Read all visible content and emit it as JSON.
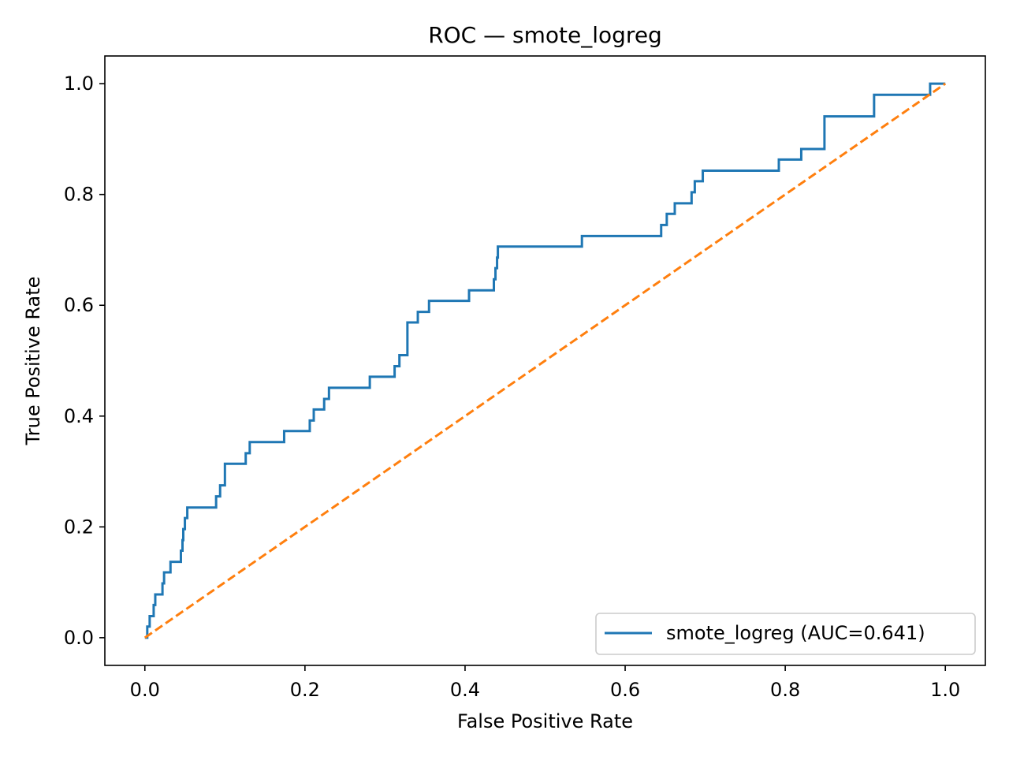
{
  "chart_data": {
    "type": "line",
    "title": "ROC — smote_logreg",
    "xlabel": "False Positive Rate",
    "ylabel": "True Positive Rate",
    "xlim": [
      -0.05,
      1.05
    ],
    "ylim": [
      -0.05,
      1.05
    ],
    "xticks": [
      0.0,
      0.2,
      0.4,
      0.6,
      0.8,
      1.0
    ],
    "xtick_labels": [
      "0.0",
      "0.2",
      "0.4",
      "0.6",
      "0.8",
      "1.0"
    ],
    "yticks": [
      0.0,
      0.2,
      0.4,
      0.6,
      0.8,
      1.0
    ],
    "ytick_labels": [
      "0.0",
      "0.2",
      "0.4",
      "0.6",
      "0.8",
      "1.0"
    ],
    "grid": false,
    "legend_position": "lower-right",
    "series": [
      {
        "name": "smote_logreg (AUC=0.641)",
        "color": "#1f77b4",
        "style": "solid",
        "points": [
          [
            0.0,
            0.0
          ],
          [
            0.003,
            0.0
          ],
          [
            0.003,
            0.02
          ],
          [
            0.006,
            0.02
          ],
          [
            0.006,
            0.039
          ],
          [
            0.011,
            0.039
          ],
          [
            0.011,
            0.059
          ],
          [
            0.013,
            0.059
          ],
          [
            0.013,
            0.078
          ],
          [
            0.022,
            0.078
          ],
          [
            0.022,
            0.098
          ],
          [
            0.024,
            0.098
          ],
          [
            0.024,
            0.118
          ],
          [
            0.032,
            0.118
          ],
          [
            0.032,
            0.137
          ],
          [
            0.045,
            0.137
          ],
          [
            0.045,
            0.157
          ],
          [
            0.047,
            0.157
          ],
          [
            0.047,
            0.176
          ],
          [
            0.048,
            0.176
          ],
          [
            0.048,
            0.196
          ],
          [
            0.05,
            0.196
          ],
          [
            0.05,
            0.216
          ],
          [
            0.053,
            0.216
          ],
          [
            0.053,
            0.235
          ],
          [
            0.089,
            0.235
          ],
          [
            0.089,
            0.255
          ],
          [
            0.094,
            0.255
          ],
          [
            0.094,
            0.275
          ],
          [
            0.1,
            0.275
          ],
          [
            0.1,
            0.314
          ],
          [
            0.126,
            0.314
          ],
          [
            0.126,
            0.333
          ],
          [
            0.131,
            0.333
          ],
          [
            0.131,
            0.353
          ],
          [
            0.174,
            0.353
          ],
          [
            0.174,
            0.373
          ],
          [
            0.206,
            0.373
          ],
          [
            0.206,
            0.392
          ],
          [
            0.211,
            0.392
          ],
          [
            0.211,
            0.412
          ],
          [
            0.224,
            0.412
          ],
          [
            0.224,
            0.431
          ],
          [
            0.23,
            0.431
          ],
          [
            0.23,
            0.451
          ],
          [
            0.281,
            0.451
          ],
          [
            0.281,
            0.471
          ],
          [
            0.312,
            0.471
          ],
          [
            0.312,
            0.49
          ],
          [
            0.318,
            0.49
          ],
          [
            0.318,
            0.51
          ],
          [
            0.328,
            0.51
          ],
          [
            0.328,
            0.569
          ],
          [
            0.341,
            0.569
          ],
          [
            0.341,
            0.588
          ],
          [
            0.355,
            0.588
          ],
          [
            0.355,
            0.608
          ],
          [
            0.405,
            0.608
          ],
          [
            0.405,
            0.627
          ],
          [
            0.436,
            0.627
          ],
          [
            0.436,
            0.647
          ],
          [
            0.438,
            0.647
          ],
          [
            0.438,
            0.667
          ],
          [
            0.44,
            0.667
          ],
          [
            0.44,
            0.686
          ],
          [
            0.441,
            0.686
          ],
          [
            0.441,
            0.706
          ],
          [
            0.546,
            0.706
          ],
          [
            0.546,
            0.725
          ],
          [
            0.645,
            0.725
          ],
          [
            0.645,
            0.745
          ],
          [
            0.652,
            0.745
          ],
          [
            0.652,
            0.765
          ],
          [
            0.662,
            0.765
          ],
          [
            0.662,
            0.784
          ],
          [
            0.683,
            0.784
          ],
          [
            0.683,
            0.804
          ],
          [
            0.687,
            0.804
          ],
          [
            0.687,
            0.824
          ],
          [
            0.697,
            0.824
          ],
          [
            0.697,
            0.843
          ],
          [
            0.792,
            0.843
          ],
          [
            0.792,
            0.863
          ],
          [
            0.82,
            0.863
          ],
          [
            0.82,
            0.882
          ],
          [
            0.849,
            0.882
          ],
          [
            0.849,
            0.941
          ],
          [
            0.911,
            0.941
          ],
          [
            0.911,
            0.98
          ],
          [
            0.981,
            0.98
          ],
          [
            0.981,
            1.0
          ],
          [
            1.0,
            1.0
          ]
        ]
      },
      {
        "color": "#ff7f0e",
        "style": "dashed",
        "points": [
          [
            0.0,
            0.0
          ],
          [
            1.0,
            1.0
          ]
        ]
      }
    ]
  }
}
